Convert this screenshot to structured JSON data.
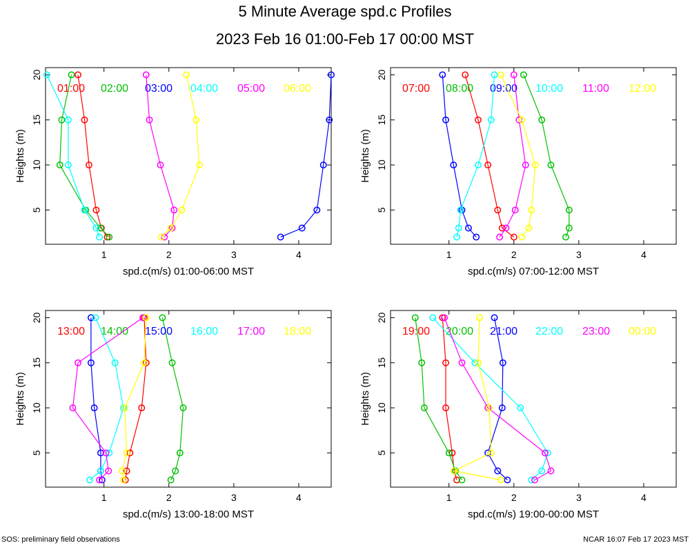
{
  "title": "5 Minute Average spd.c Profiles",
  "subtitle": "2023 Feb 16 01:00-Feb 17 00:00 MST",
  "footer_left": "SOS: preliminary field observations",
  "footer_right": "NCAR 16:07 Feb 17 2023 MST",
  "colors": [
    "#ff0000",
    "#00c000",
    "#0000ff",
    "#00ffff",
    "#ff00ff",
    "#ffff00"
  ],
  "chart_data": [
    {
      "type": "scatter",
      "xlabel": "spd.c(m/s) 01:00-06:00 MST",
      "ylabel": "Heights (m)",
      "xlim": [
        0.1,
        4.5
      ],
      "ylim": [
        1.2,
        20.8
      ],
      "xticks": [
        1,
        2,
        3,
        4
      ],
      "yticks": [
        5,
        10,
        15,
        20
      ],
      "heights": [
        2,
        3,
        5,
        10,
        15,
        20
      ],
      "series": [
        {
          "name": "01:00",
          "values": [
            1.05,
            0.96,
            0.88,
            0.77,
            0.7,
            0.6
          ]
        },
        {
          "name": "02:00",
          "values": [
            1.08,
            0.95,
            0.72,
            0.32,
            0.35,
            0.5
          ]
        },
        {
          "name": "03:00",
          "values": [
            3.72,
            4.05,
            4.28,
            4.38,
            4.47,
            4.5
          ]
        },
        {
          "name": "04:00",
          "values": [
            0.93,
            0.88,
            0.7,
            0.45,
            0.45,
            0.12
          ]
        },
        {
          "name": "05:00",
          "values": [
            1.93,
            2.05,
            2.08,
            1.87,
            1.7,
            1.65
          ]
        },
        {
          "name": "06:00",
          "values": [
            1.88,
            2.03,
            2.2,
            2.47,
            2.42,
            2.27
          ]
        }
      ]
    },
    {
      "type": "scatter",
      "xlabel": "spd.c(m/s) 07:00-12:00 MST",
      "ylabel": "Heights (m)",
      "xlim": [
        0.1,
        4.5
      ],
      "ylim": [
        1.2,
        20.8
      ],
      "xticks": [
        1,
        2,
        3,
        4
      ],
      "yticks": [
        5,
        10,
        15,
        20
      ],
      "heights": [
        2,
        3,
        5,
        10,
        15,
        20
      ],
      "series": [
        {
          "name": "07:00",
          "values": [
            2.0,
            1.82,
            1.75,
            1.6,
            1.45,
            1.25
          ]
        },
        {
          "name": "08:00",
          "values": [
            2.8,
            2.85,
            2.85,
            2.57,
            2.43,
            2.15
          ]
        },
        {
          "name": "09:00",
          "values": [
            1.42,
            1.3,
            1.2,
            1.07,
            0.95,
            0.9
          ]
        },
        {
          "name": "10:00",
          "values": [
            1.12,
            1.15,
            1.18,
            1.45,
            1.65,
            1.7
          ]
        },
        {
          "name": "11:00",
          "values": [
            1.78,
            1.88,
            2.02,
            2.18,
            2.08,
            2.0
          ]
        },
        {
          "name": "12:00",
          "values": [
            2.12,
            2.23,
            2.27,
            2.33,
            2.12,
            1.8
          ]
        }
      ]
    },
    {
      "type": "scatter",
      "xlabel": "spd.c(m/s) 13:00-18:00 MST",
      "ylabel": "Heights (m)",
      "xlim": [
        0.1,
        4.5
      ],
      "ylim": [
        1.2,
        20.8
      ],
      "xticks": [
        1,
        2,
        3,
        4
      ],
      "yticks": [
        5,
        10,
        15,
        20
      ],
      "heights": [
        2,
        3,
        5,
        10,
        15,
        20
      ],
      "series": [
        {
          "name": "13:00",
          "values": [
            1.33,
            1.35,
            1.4,
            1.58,
            1.65,
            1.62
          ]
        },
        {
          "name": "14:00",
          "values": [
            2.03,
            2.1,
            2.17,
            2.22,
            2.05,
            1.9
          ]
        },
        {
          "name": "15:00",
          "values": [
            0.97,
            0.95,
            0.95,
            0.85,
            0.8,
            0.8
          ]
        },
        {
          "name": "16:00",
          "values": [
            0.78,
            0.95,
            1.08,
            1.3,
            1.17,
            0.87
          ]
        },
        {
          "name": "17:00",
          "values": [
            0.93,
            1.07,
            1.03,
            0.52,
            0.6,
            1.6
          ]
        },
        {
          "name": "18:00",
          "values": [
            1.3,
            1.28,
            1.35,
            1.32,
            1.62,
            1.65
          ]
        }
      ]
    },
    {
      "type": "scatter",
      "xlabel": "spd.c(m/s) 19:00-00:00 MST",
      "ylabel": "Heights (m)",
      "xlim": [
        0.1,
        4.5
      ],
      "ylim": [
        1.2,
        20.8
      ],
      "xticks": [
        1,
        2,
        3,
        4
      ],
      "yticks": [
        5,
        10,
        15,
        20
      ],
      "heights": [
        2,
        3,
        5,
        10,
        15,
        20
      ],
      "series": [
        {
          "name": "19:00",
          "values": [
            1.12,
            1.08,
            1.05,
            0.95,
            0.95,
            0.9
          ]
        },
        {
          "name": "20:00",
          "values": [
            1.2,
            1.1,
            1.0,
            0.62,
            0.58,
            0.48
          ]
        },
        {
          "name": "21:00",
          "values": [
            1.9,
            1.75,
            1.6,
            1.82,
            1.83,
            1.7
          ]
        },
        {
          "name": "22:00",
          "values": [
            2.27,
            2.43,
            2.52,
            2.1,
            1.4,
            0.75
          ]
        },
        {
          "name": "23:00",
          "values": [
            2.32,
            2.57,
            2.48,
            1.6,
            1.2,
            0.93
          ]
        },
        {
          "name": "00:00",
          "values": [
            1.8,
            1.08,
            1.65,
            1.62,
            1.45,
            1.47
          ]
        }
      ]
    }
  ]
}
